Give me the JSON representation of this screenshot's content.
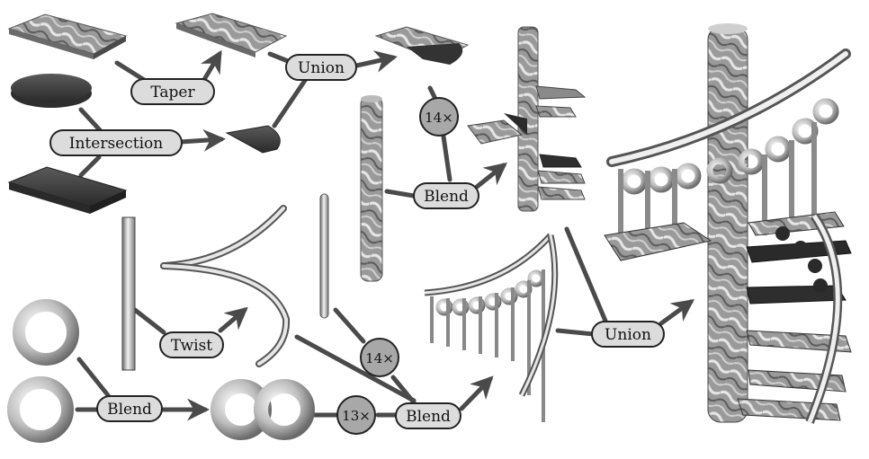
{
  "operations": {
    "taper": "Taper",
    "union_top": "Union",
    "intersection": "Intersection",
    "blend_steps": "Blend",
    "twist": "Twist",
    "blend_torus": "Blend",
    "blend_rail": "Blend",
    "union_final": "Union"
  },
  "counts": {
    "steps": "14×",
    "posts": "14×",
    "loops": "13×"
  },
  "colors": {
    "dark_object": "#3b3b3b",
    "marble_a": "#8a8a8a",
    "marble_b": "#d9d9d9",
    "label_fill": "#dcdcdc",
    "count_fill": "#a8a8a8",
    "arrow": "#4a4a4a",
    "rail": "#c8c8c8"
  }
}
